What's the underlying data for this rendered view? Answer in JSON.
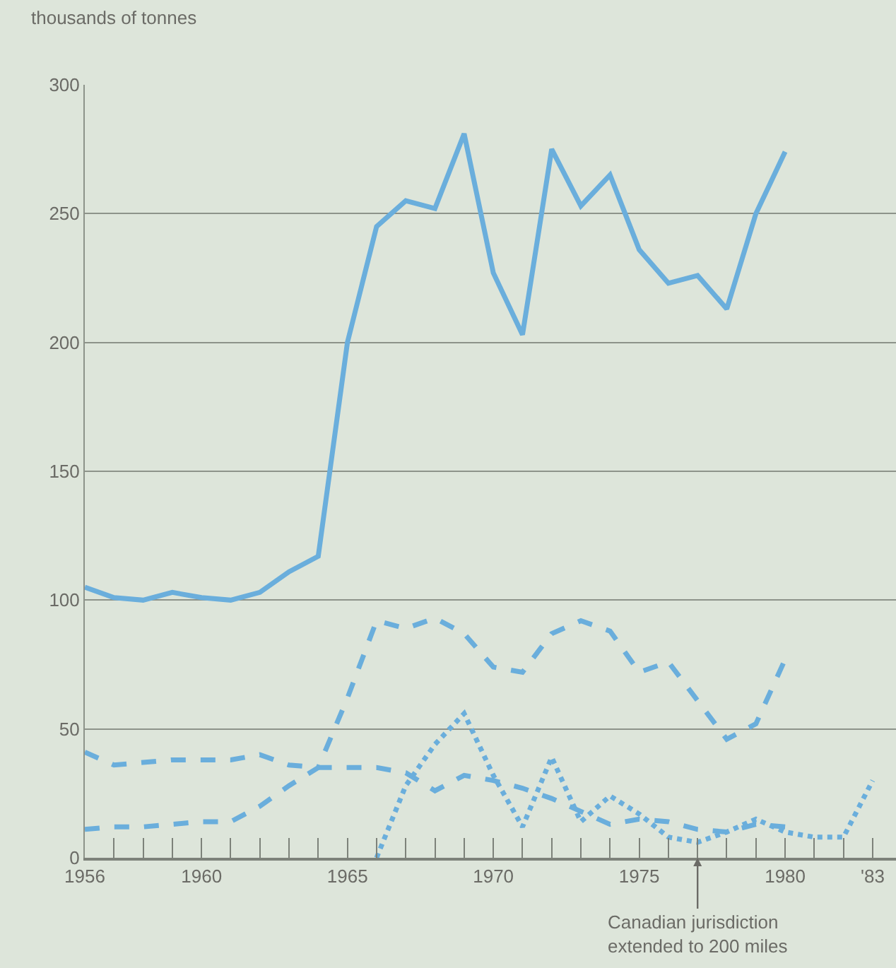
{
  "chart_data": {
    "type": "line",
    "ylabel": "thousands of tonnes",
    "x": [
      1956,
      1957,
      1958,
      1959,
      1960,
      1961,
      1962,
      1963,
      1964,
      1965,
      1966,
      1967,
      1968,
      1969,
      1970,
      1971,
      1972,
      1973,
      1974,
      1975,
      1976,
      1977,
      1978,
      1979,
      1980
    ],
    "series": [
      {
        "color": "#6aaedc",
        "line_style": "solid",
        "values": [
          105,
          101,
          100,
          103,
          101,
          100,
          103,
          111,
          117,
          200,
          245,
          255,
          252,
          281,
          227,
          203,
          275,
          253,
          265,
          236,
          223,
          226,
          213,
          250,
          274
        ]
      },
      {
        "color": "#6aaedc",
        "line_style": "dashed",
        "values": [
          11,
          12,
          12,
          13,
          14,
          14,
          20,
          28,
          35,
          62,
          92,
          89,
          93,
          87,
          74,
          72,
          87,
          92,
          88,
          72,
          76,
          61,
          46,
          52,
          77
        ]
      },
      {
        "color": "#6aaedc",
        "line_style": "dashed",
        "values": [
          41,
          36,
          37,
          38,
          38,
          38,
          40,
          36,
          35,
          35,
          35,
          33,
          26,
          32,
          30,
          27,
          23,
          18,
          13,
          15,
          14,
          11,
          10,
          13,
          12
        ]
      },
      {
        "color": "#6aaedc",
        "line_style": "dotted",
        "x": [
          1966,
          1967,
          1968,
          1969,
          1970,
          1971,
          1972,
          1973,
          1974,
          1975,
          1976,
          1977,
          1978,
          1979,
          1980,
          1981,
          1982,
          1983
        ],
        "values": [
          0,
          28,
          44,
          56,
          32,
          12,
          39,
          14,
          24,
          17,
          8,
          6,
          10,
          15,
          10,
          8,
          8,
          30
        ]
      }
    ],
    "xlim": [
      1956,
      1983.8
    ],
    "ylim": [
      0,
      300
    ],
    "xticks": [
      1956,
      {
        "value": 1957,
        "label": null
      },
      {
        "value": 1958,
        "label": null
      },
      {
        "value": 1959,
        "label": null
      },
      1960,
      {
        "value": 1961,
        "label": null
      },
      {
        "value": 1962,
        "label": null
      },
      {
        "value": 1963,
        "label": null
      },
      {
        "value": 1964,
        "label": null
      },
      1965,
      {
        "value": 1966,
        "label": null
      },
      {
        "value": 1967,
        "label": null
      },
      {
        "value": 1968,
        "label": null
      },
      {
        "value": 1969,
        "label": null
      },
      1970,
      {
        "value": 1971,
        "label": null
      },
      {
        "value": 1972,
        "label": null
      },
      {
        "value": 1973,
        "label": null
      },
      {
        "value": 1974,
        "label": null
      },
      1975,
      {
        "value": 1976,
        "label": null
      },
      {
        "value": 1977,
        "label": null
      },
      {
        "value": 1978,
        "label": null
      },
      {
        "value": 1979,
        "label": null
      },
      1980,
      {
        "value": 1981,
        "label": null
      },
      {
        "value": 1982,
        "label": null
      },
      {
        "value": 1983,
        "label": "'83"
      }
    ],
    "yticks": [
      0,
      50,
      100,
      150,
      200,
      250,
      300
    ],
    "grid": "y",
    "marker": "none",
    "ref_lines": [
      {
        "axis": "x",
        "value": 1977,
        "label": "Canadian jurisdiction\nextended to 200 miles"
      }
    ]
  }
}
